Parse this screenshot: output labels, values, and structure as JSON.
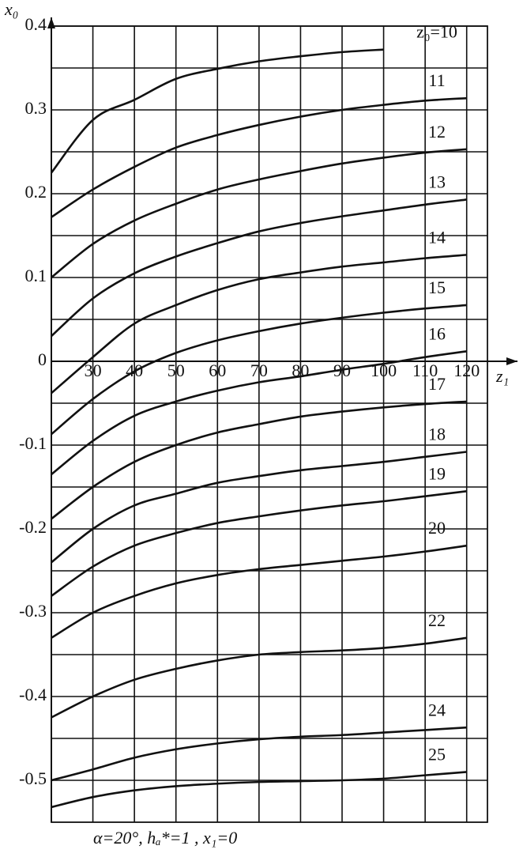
{
  "chart_data": {
    "type": "line",
    "y_label": "x₀",
    "x_label": "z₁",
    "footnote": "α=20°,   hₐ*=1 , x₁=0",
    "x": [
      20,
      30,
      40,
      50,
      60,
      70,
      80,
      90,
      100,
      110,
      120
    ],
    "xlim": [
      20,
      125
    ],
    "ylim": [
      -0.55,
      0.4
    ],
    "xticks": [
      30,
      40,
      50,
      60,
      70,
      80,
      90,
      100,
      110,
      120
    ],
    "yticks": [
      0.4,
      0.3,
      0.2,
      0.1,
      0,
      -0.1,
      -0.2,
      -0.3,
      -0.4,
      -0.5
    ],
    "yminor": [
      0.35,
      0.25,
      0.15,
      0.05,
      -0.05,
      -0.15,
      -0.25,
      -0.35,
      -0.45
    ],
    "grid": true,
    "color": "#111111",
    "series": [
      {
        "name": "z₀=10",
        "values": [
          0.225,
          0.288,
          0.312,
          0.337,
          0.349,
          0.358,
          0.364,
          0.369,
          0.372,
          null,
          null
        ]
      },
      {
        "name": "11",
        "values": [
          0.172,
          0.205,
          0.232,
          0.255,
          0.27,
          0.282,
          0.292,
          0.3,
          0.306,
          0.311,
          0.314
        ]
      },
      {
        "name": "12",
        "values": [
          0.1,
          0.14,
          0.168,
          0.188,
          0.205,
          0.217,
          0.227,
          0.236,
          0.243,
          0.249,
          0.253
        ]
      },
      {
        "name": "13",
        "values": [
          0.03,
          0.075,
          0.105,
          0.125,
          0.141,
          0.155,
          0.165,
          0.173,
          0.18,
          0.187,
          0.193
        ]
      },
      {
        "name": "14",
        "values": [
          -0.038,
          0.005,
          0.045,
          0.067,
          0.085,
          0.098,
          0.106,
          0.113,
          0.118,
          0.123,
          0.127
        ]
      },
      {
        "name": "15",
        "values": [
          -0.087,
          -0.045,
          -0.012,
          0.01,
          0.025,
          0.036,
          0.045,
          0.052,
          0.058,
          0.063,
          0.067
        ]
      },
      {
        "name": "16",
        "values": [
          -0.135,
          -0.095,
          -0.065,
          -0.048,
          -0.035,
          -0.025,
          -0.018,
          -0.01,
          -0.003,
          0.005,
          0.012
        ]
      },
      {
        "name": "17",
        "values": [
          -0.188,
          -0.15,
          -0.12,
          -0.1,
          -0.085,
          -0.075,
          -0.066,
          -0.06,
          -0.055,
          -0.051,
          -0.048
        ]
      },
      {
        "name": "18",
        "values": [
          -0.24,
          -0.2,
          -0.172,
          -0.158,
          -0.145,
          -0.137,
          -0.13,
          -0.125,
          -0.12,
          -0.114,
          -0.108
        ]
      },
      {
        "name": "19",
        "values": [
          -0.28,
          -0.245,
          -0.22,
          -0.205,
          -0.193,
          -0.185,
          -0.178,
          -0.172,
          -0.167,
          -0.161,
          -0.155
        ]
      },
      {
        "name": "20",
        "values": [
          -0.33,
          -0.3,
          -0.28,
          -0.265,
          -0.255,
          -0.248,
          -0.243,
          -0.238,
          -0.233,
          -0.227,
          -0.22
        ]
      },
      {
        "name": "22",
        "values": [
          -0.425,
          -0.4,
          -0.38,
          -0.367,
          -0.357,
          -0.35,
          -0.347,
          -0.345,
          -0.342,
          -0.337,
          -0.33
        ]
      },
      {
        "name": "24",
        "values": [
          -0.5,
          -0.487,
          -0.473,
          -0.463,
          -0.456,
          -0.451,
          -0.448,
          -0.446,
          -0.443,
          -0.44,
          -0.437
        ]
      },
      {
        "name": "25",
        "values": [
          -0.532,
          -0.52,
          -0.512,
          -0.507,
          -0.504,
          -0.502,
          -0.501,
          -0.5,
          -0.498,
          -0.494,
          -0.49
        ]
      }
    ]
  }
}
